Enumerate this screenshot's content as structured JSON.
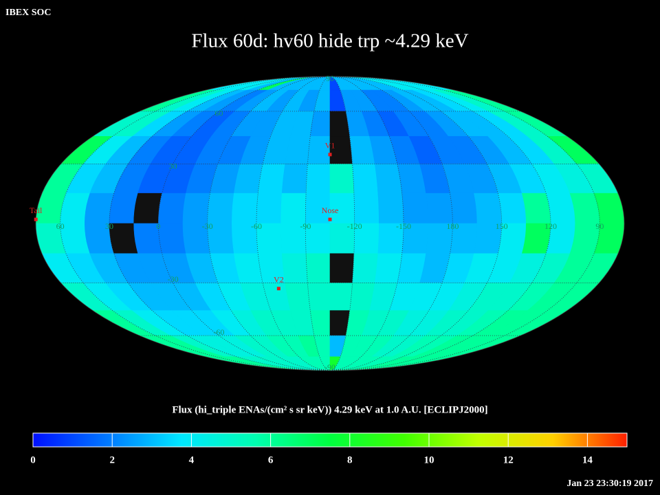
{
  "chart_data": {
    "type": "skymap",
    "header": "IBEX SOC",
    "title": "Flux   60d: hv60 hide trp ~4.29 keV",
    "colorbar_label": "Flux (hi_triple ENAs/(cm² s sr keV))  4.29 keV at 1.0 A.U. [ECLIPJ2000]",
    "timestamp": "Jan 23 23:30:19 2017",
    "center_lon": -105,
    "lon_ticks": [
      60,
      30,
      0,
      -30,
      -60,
      -90,
      -120,
      -150,
      180,
      150,
      120,
      90
    ],
    "lat_ticks": [
      90,
      60,
      30,
      -30,
      -60,
      -90
    ],
    "clim": [
      0,
      15
    ],
    "cticks": [
      0,
      2,
      4,
      6,
      8,
      10,
      12,
      14
    ],
    "colormap": [
      "#0010ff",
      "#0078ff",
      "#00e8ff",
      "#00ffb0",
      "#00ff40",
      "#40ff00",
      "#c0ff00",
      "#ffd000",
      "#ff2000"
    ],
    "missing_color": "#111111",
    "markers": [
      {
        "label": "V1",
        "lon": -105,
        "lat": 35
      },
      {
        "label": "Nose",
        "lon": -105,
        "lat": 2
      },
      {
        "label": "V2",
        "lon": -70,
        "lat": -33
      },
      {
        "label": "Tail",
        "lon": 75,
        "lat": 2
      }
    ],
    "values": [
      [
        4,
        4,
        4,
        4,
        3,
        7,
        3,
        3,
        3,
        3,
        3,
        3,
        1,
        3,
        3,
        3,
        3,
        3,
        3,
        4,
        4,
        4,
        4,
        4
      ],
      [
        6,
        5,
        4,
        3,
        2.5,
        2,
        2.5,
        3,
        2.5,
        3,
        2.5,
        3,
        1,
        2.5,
        2.5,
        2,
        2,
        2.5,
        3,
        3,
        3.5,
        4,
        5,
        6
      ],
      [
        5,
        5,
        3.5,
        2.5,
        2,
        1.5,
        2,
        2.5,
        2.5,
        3,
        3,
        2.5,
        null,
        2.5,
        2,
        1.5,
        2,
        2,
        2.5,
        3,
        3,
        3.5,
        5,
        6
      ],
      [
        7,
        4,
        3,
        2,
        1.5,
        1.5,
        2,
        2,
        2.5,
        3,
        3,
        3,
        null,
        3,
        2.5,
        2,
        1.5,
        2,
        2,
        2.5,
        3,
        3.5,
        5,
        7
      ],
      [
        6,
        3.5,
        3,
        2,
        1.5,
        1.5,
        2,
        2.5,
        3,
        3.5,
        3,
        3.5,
        5,
        3.5,
        3,
        2.5,
        2,
        2.5,
        2.5,
        3,
        3.5,
        4,
        4.5,
        5
      ],
      [
        6,
        4,
        2.5,
        2,
        null,
        2,
        2.5,
        3,
        3.5,
        3.5,
        4,
        3.5,
        4,
        3.5,
        3,
        2.5,
        2.5,
        2.5,
        3,
        3.5,
        6,
        4,
        6,
        7
      ],
      [
        5,
        4,
        2.5,
        null,
        2,
        2,
        2.5,
        3,
        3.5,
        4,
        4,
        4,
        4.5,
        4,
        3.5,
        3,
        3,
        3,
        3,
        4,
        7,
        4,
        6,
        7
      ],
      [
        4,
        3.5,
        3,
        2.5,
        2.5,
        2.5,
        3,
        3.5,
        4,
        4,
        4.5,
        5,
        null,
        4.5,
        4,
        3.5,
        3,
        3.5,
        4,
        4,
        4.5,
        5,
        6,
        6
      ],
      [
        5,
        4,
        3.5,
        3,
        3,
        3,
        3.5,
        4,
        4.5,
        4.5,
        5,
        5,
        5,
        5,
        4.5,
        4,
        4,
        4,
        4.5,
        5,
        5,
        5.5,
        6,
        6
      ],
      [
        6,
        5,
        4,
        3.5,
        3.5,
        3.5,
        4,
        4.5,
        5,
        5,
        5,
        5.5,
        null,
        5.5,
        5,
        5,
        4.5,
        4.5,
        5,
        5,
        5.5,
        6,
        6,
        6
      ],
      [
        6,
        6,
        5,
        4.5,
        4.5,
        4.5,
        5,
        5,
        5.5,
        5.5,
        6,
        5.5,
        3,
        5.5,
        5.5,
        5.5,
        5,
        5,
        5.5,
        5.5,
        6,
        6,
        6,
        6
      ],
      [
        6,
        6,
        6,
        5,
        5,
        5,
        5,
        5,
        5,
        5.5,
        5.5,
        5.5,
        8,
        5.5,
        5.5,
        5.5,
        5.5,
        5.5,
        5.5,
        6,
        6,
        6,
        6,
        6
      ]
    ]
  }
}
